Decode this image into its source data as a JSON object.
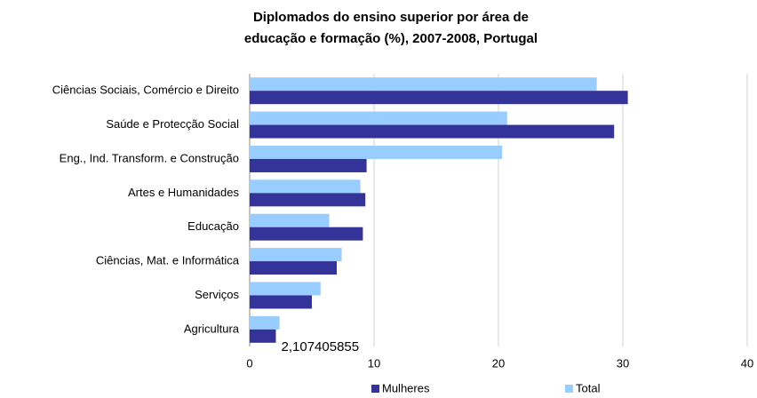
{
  "chart_data": {
    "type": "hbar",
    "title": "Diplomados do ensino superior por área de",
    "subtitle": "educação e formação (%), 2007-2008, Portugal",
    "categories": [
      "Ciências Sociais, Comércio e Direito",
      "Saúde e Protecção Social",
      "Eng., Ind. Transform. e Construção",
      "Artes e Humanidades",
      "Educação",
      "Ciências, Mat. e Informática",
      "Serviços",
      "Agricultura"
    ],
    "series": [
      {
        "name": "Mulheres",
        "color": "#333399",
        "values": [
          30.4,
          29.3,
          9.4,
          9.3,
          9.1,
          7.0,
          5.0,
          2.107405855
        ],
        "value_labels": [
          null,
          null,
          null,
          null,
          null,
          null,
          null,
          "2,107405855"
        ]
      },
      {
        "name": "Total",
        "color": "#99ccff",
        "values": [
          27.9,
          20.7,
          20.3,
          8.9,
          6.4,
          7.4,
          5.7,
          2.4
        ]
      }
    ],
    "xlim": [
      0,
      40
    ],
    "xticks": [
      0,
      10,
      20,
      30,
      40
    ],
    "grid": true,
    "legend": "bottom"
  }
}
